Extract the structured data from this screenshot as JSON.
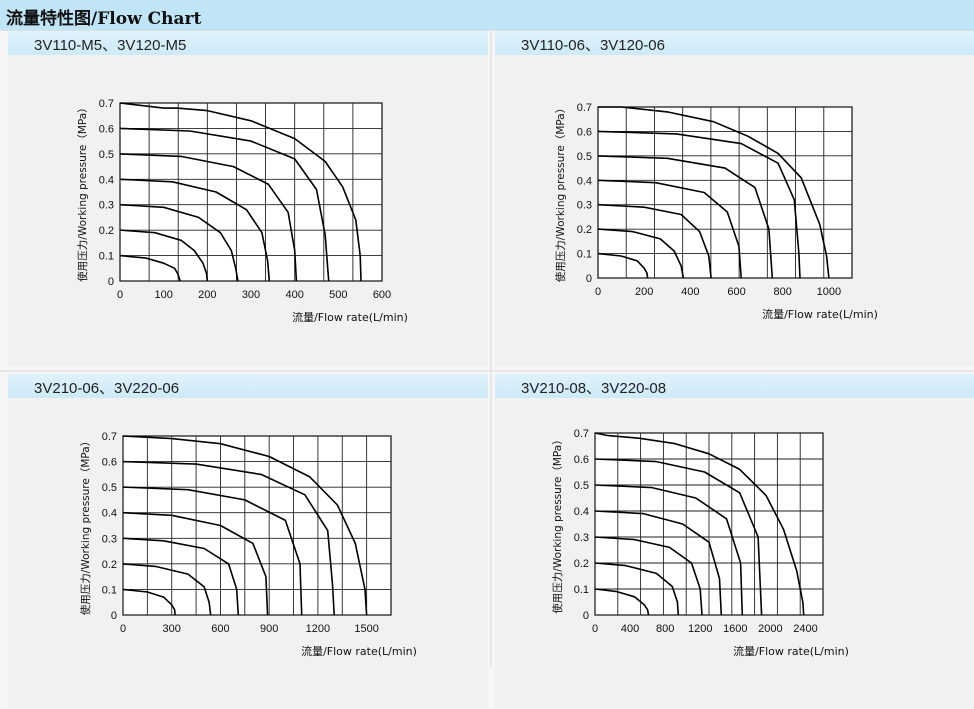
{
  "header": {
    "title": "流量特性图/Flow Chart"
  },
  "charts": [
    {
      "panel_title": "3V110-M5、3V120-M5",
      "ylabel": "使用压力/Working pressure（MPa）",
      "xlabel": "流量/Flow rate(L/min)",
      "x_ticks": [
        "0",
        "100",
        "200",
        "300",
        "400",
        "500",
        "600"
      ],
      "y_ticks": [
        "0",
        "0.1",
        "0.2",
        "0.3",
        "0.4",
        "0.5",
        "0.6",
        "0.7"
      ]
    },
    {
      "panel_title": "3V110-06、3V120-06",
      "ylabel": "使用压力/Working pressure（MPa）",
      "xlabel": "流量/Flow rate(L/min)",
      "x_ticks": [
        "0",
        "200",
        "400",
        "600",
        "800",
        "1000"
      ],
      "y_ticks": [
        "0",
        "0.1",
        "0.2",
        "0.3",
        "0.4",
        "0.5",
        "0.6",
        "0.7"
      ]
    },
    {
      "panel_title": "3V210-06、3V220-06",
      "ylabel": "使用压力/Working pressure（MPa）",
      "xlabel": "流量/Flow rate(L/min)",
      "x_ticks": [
        "0",
        "300",
        "600",
        "900",
        "1200",
        "1500"
      ],
      "y_ticks": [
        "0",
        "0.1",
        "0.2",
        "0.3",
        "0.4",
        "0.5",
        "0.6",
        "0.7"
      ]
    },
    {
      "panel_title": "3V210-08、3V220-08",
      "ylabel": "使用压力/Working pressure（MPa）",
      "xlabel": "流量/Flow rate(L/min)",
      "x_ticks": [
        "0",
        "400",
        "800",
        "1200",
        "1600",
        "2000",
        "2400"
      ],
      "y_ticks": [
        "0",
        "0.1",
        "0.2",
        "0.3",
        "0.4",
        "0.5",
        "0.6",
        "0.7"
      ]
    }
  ],
  "chart_data": [
    {
      "type": "line",
      "xlim": [
        0,
        600
      ],
      "ylim": [
        0,
        0.7
      ],
      "grid": true,
      "series": [
        {
          "x": [
            0,
            60,
            100,
            125,
            132,
            136,
            138
          ],
          "y": [
            0.1,
            0.09,
            0.07,
            0.05,
            0.03,
            0.01,
            0
          ]
        },
        {
          "x": [
            0,
            80,
            140,
            170,
            190,
            198,
            200
          ],
          "y": [
            0.2,
            0.19,
            0.16,
            0.12,
            0.07,
            0.03,
            0
          ]
        },
        {
          "x": [
            0,
            100,
            180,
            230,
            255,
            265,
            270
          ],
          "y": [
            0.3,
            0.29,
            0.25,
            0.19,
            0.12,
            0.05,
            0
          ]
        },
        {
          "x": [
            0,
            120,
            220,
            290,
            325,
            338,
            342
          ],
          "y": [
            0.4,
            0.39,
            0.35,
            0.28,
            0.19,
            0.08,
            0
          ]
        },
        {
          "x": [
            0,
            140,
            260,
            340,
            385,
            400,
            404
          ],
          "y": [
            0.5,
            0.49,
            0.45,
            0.38,
            0.27,
            0.12,
            0
          ]
        },
        {
          "x": [
            0,
            160,
            300,
            400,
            450,
            470,
            478
          ],
          "y": [
            0.6,
            0.59,
            0.55,
            0.48,
            0.36,
            0.18,
            0
          ]
        },
        {
          "x": [
            0,
            100,
            130,
            200,
            300,
            400,
            470,
            510,
            540,
            550,
            552
          ],
          "y": [
            0.7,
            0.68,
            0.68,
            0.67,
            0.63,
            0.56,
            0.47,
            0.37,
            0.24,
            0.1,
            0
          ]
        }
      ]
    },
    {
      "type": "line",
      "xlim": [
        0,
        1100
      ],
      "ylim": [
        0,
        0.7
      ],
      "grid": true,
      "series": [
        {
          "x": [
            0,
            100,
            170,
            200,
            212,
            215
          ],
          "y": [
            0.1,
            0.09,
            0.07,
            0.04,
            0.02,
            0
          ]
        },
        {
          "x": [
            0,
            150,
            270,
            330,
            360,
            370
          ],
          "y": [
            0.2,
            0.19,
            0.16,
            0.11,
            0.05,
            0
          ]
        },
        {
          "x": [
            0,
            200,
            360,
            440,
            480,
            490
          ],
          "y": [
            0.3,
            0.29,
            0.26,
            0.19,
            0.09,
            0
          ]
        },
        {
          "x": [
            0,
            250,
            460,
            560,
            610,
            620
          ],
          "y": [
            0.4,
            0.39,
            0.35,
            0.27,
            0.13,
            0
          ]
        },
        {
          "x": [
            0,
            300,
            550,
            680,
            740,
            755
          ],
          "y": [
            0.5,
            0.49,
            0.45,
            0.37,
            0.2,
            0
          ]
        },
        {
          "x": [
            0,
            340,
            620,
            780,
            850,
            870,
            875
          ],
          "y": [
            0.6,
            0.59,
            0.55,
            0.47,
            0.32,
            0.1,
            0
          ]
        },
        {
          "x": [
            0,
            100,
            300,
            500,
            650,
            780,
            880,
            960,
            990,
            1000
          ],
          "y": [
            0.7,
            0.7,
            0.68,
            0.64,
            0.58,
            0.51,
            0.41,
            0.22,
            0.09,
            0
          ]
        }
      ]
    },
    {
      "type": "line",
      "xlim": [
        0,
        1650
      ],
      "ylim": [
        0,
        0.7
      ],
      "grid": true,
      "series": [
        {
          "x": [
            0,
            150,
            250,
            300,
            318,
            320
          ],
          "y": [
            0.1,
            0.09,
            0.07,
            0.04,
            0.02,
            0
          ]
        },
        {
          "x": [
            0,
            200,
            400,
            500,
            530,
            540
          ],
          "y": [
            0.2,
            0.19,
            0.16,
            0.11,
            0.05,
            0
          ]
        },
        {
          "x": [
            0,
            250,
            500,
            650,
            700,
            710
          ],
          "y": [
            0.3,
            0.29,
            0.26,
            0.2,
            0.1,
            0
          ]
        },
        {
          "x": [
            0,
            300,
            600,
            800,
            880,
            890
          ],
          "y": [
            0.4,
            0.39,
            0.35,
            0.28,
            0.15,
            0
          ]
        },
        {
          "x": [
            0,
            400,
            750,
            1000,
            1090,
            1100
          ],
          "y": [
            0.5,
            0.49,
            0.45,
            0.37,
            0.2,
            0
          ]
        },
        {
          "x": [
            0,
            450,
            850,
            1120,
            1260,
            1290,
            1300
          ],
          "y": [
            0.6,
            0.59,
            0.55,
            0.47,
            0.33,
            0.12,
            0
          ]
        },
        {
          "x": [
            0,
            300,
            600,
            900,
            1150,
            1320,
            1430,
            1490,
            1500
          ],
          "y": [
            0.7,
            0.69,
            0.67,
            0.62,
            0.54,
            0.43,
            0.28,
            0.1,
            0
          ]
        }
      ]
    },
    {
      "type": "line",
      "xlim": [
        0,
        2600
      ],
      "ylim": [
        0,
        0.7
      ],
      "grid": true,
      "series": [
        {
          "x": [
            0,
            250,
            450,
            560,
            600,
            610
          ],
          "y": [
            0.1,
            0.09,
            0.07,
            0.04,
            0.02,
            0
          ]
        },
        {
          "x": [
            0,
            350,
            700,
            880,
            940,
            950
          ],
          "y": [
            0.2,
            0.19,
            0.16,
            0.11,
            0.05,
            0
          ]
        },
        {
          "x": [
            0,
            450,
            850,
            1100,
            1200,
            1220
          ],
          "y": [
            0.3,
            0.29,
            0.26,
            0.2,
            0.1,
            0
          ]
        },
        {
          "x": [
            0,
            550,
            1000,
            1300,
            1420,
            1440
          ],
          "y": [
            0.4,
            0.39,
            0.35,
            0.28,
            0.14,
            0
          ]
        },
        {
          "x": [
            0,
            650,
            1150,
            1500,
            1660,
            1680
          ],
          "y": [
            0.5,
            0.49,
            0.45,
            0.37,
            0.2,
            0
          ]
        },
        {
          "x": [
            0,
            700,
            1250,
            1650,
            1860,
            1900
          ],
          "y": [
            0.6,
            0.59,
            0.55,
            0.47,
            0.3,
            0
          ]
        },
        {
          "x": [
            0,
            150,
            500,
            900,
            1300,
            1650,
            1950,
            2150,
            2300,
            2370,
            2380
          ],
          "y": [
            0.7,
            0.69,
            0.68,
            0.66,
            0.62,
            0.56,
            0.46,
            0.33,
            0.17,
            0.05,
            0
          ]
        }
      ]
    }
  ]
}
